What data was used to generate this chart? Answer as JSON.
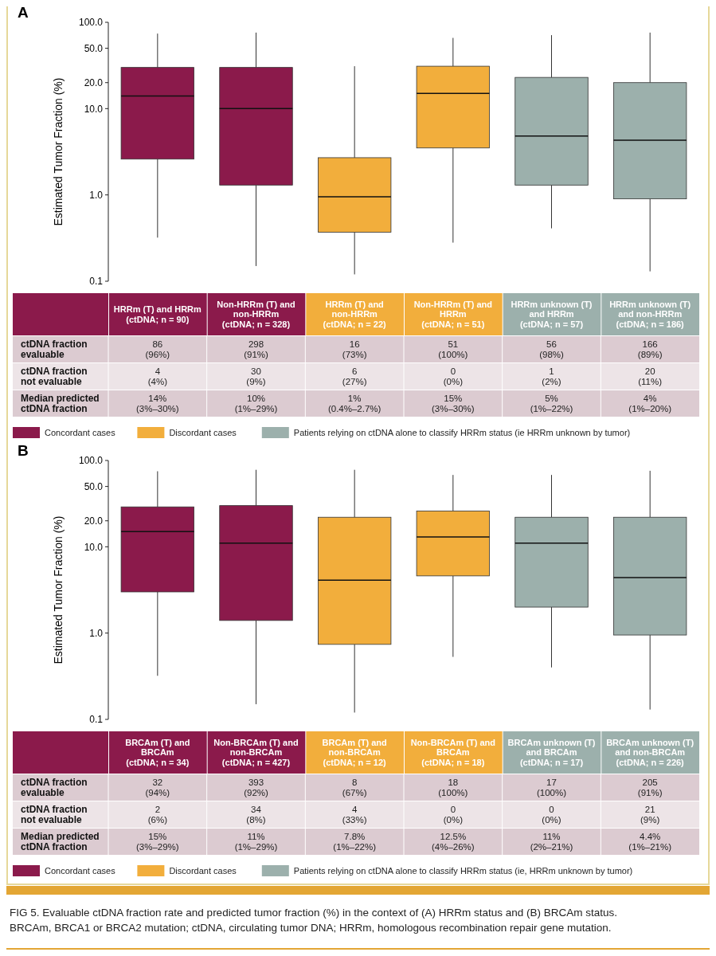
{
  "chart_data": [
    {
      "type": "box",
      "title": "A",
      "ylabel": "Estimated Tumor Fraction (%)",
      "log": "y",
      "legend": "bottom",
      "ylim": [
        0.1,
        100
      ],
      "yticks": [
        0.1,
        {
          "value": 1,
          "label": "1.0"
        },
        {
          "value": 10,
          "label": "10.0"
        },
        {
          "value": 20,
          "label": "20.0"
        },
        {
          "value": 50,
          "label": "50.0"
        },
        {
          "value": 100,
          "label": "100.0"
        }
      ],
      "categories": [
        "HRRm (T) and HRRm (ctDNA; n = 90)",
        "Non-HRRm (T) and non-HRRm (ctDNA; n = 328)",
        "HRRm (T) and non-HRRm (ctDNA; n = 22)",
        "Non-HRRm (T) and HRRm (ctDNA; n = 51)",
        "HRRm unknown (T) and HRRm (ctDNA; n = 57)",
        "HRRm unknown (T) and non-HRRm (ctDNA; n = 186)"
      ],
      "series": [
        {
          "name": "Concordant cases",
          "color": "#8b1a4b",
          "boxes": [
            {
              "low": 0.32,
              "q1": 2.6,
              "median": 14,
              "q3": 30,
              "high": 74
            },
            {
              "low": 0.15,
              "q1": 1.3,
              "median": 10,
              "q3": 30,
              "high": 76
            },
            null,
            null,
            null,
            null
          ]
        },
        {
          "name": "Discordant cases",
          "color": "#f2ae3c",
          "boxes": [
            null,
            null,
            {
              "low": 0.12,
              "q1": 0.37,
              "median": 0.95,
              "q3": 2.7,
              "high": 31
            },
            {
              "low": 0.28,
              "q1": 3.5,
              "median": 15,
              "q3": 31,
              "high": 66
            },
            null,
            null
          ]
        },
        {
          "name": "Patients relying on ctDNA alone to classify HRRm status (ie HRRm unknown by tumor)",
          "color": "#9cb0ac",
          "boxes": [
            null,
            null,
            null,
            null,
            {
              "low": 0.41,
              "q1": 1.3,
              "median": 4.8,
              "q3": 23,
              "high": 71
            },
            {
              "low": 0.13,
              "q1": 0.9,
              "median": 4.3,
              "q3": 20,
              "high": 76
            }
          ]
        }
      ],
      "annotations": [
        "ctDNA fraction evaluable",
        "ctDNA fraction not evaluable",
        "Median predicted ctDNA fraction",
        "86 (96%)",
        "298 (91%)",
        "16 (73%)",
        "51 (100%)",
        "56 (98%)",
        "166 (89%)",
        "4 (4%)",
        "30 (9%)",
        "6 (27%)",
        "0 (0%)",
        "1 (2%)",
        "20 (11%)",
        "14% (3%–30%)",
        "10% (1%–29%)",
        "1% (0.4%–2.7%)",
        "15% (3%–30%)",
        "5% (1%–22%)",
        "4% (1%–20%)"
      ]
    },
    {
      "type": "box",
      "title": "B",
      "ylabel": "Estimated Tumor Fraction (%)",
      "log": "y",
      "legend": "bottom",
      "ylim": [
        0.1,
        100
      ],
      "yticks": [
        0.1,
        {
          "value": 1,
          "label": "1.0"
        },
        {
          "value": 10,
          "label": "10.0"
        },
        {
          "value": 20,
          "label": "20.0"
        },
        {
          "value": 50,
          "label": "50.0"
        },
        {
          "value": 100,
          "label": "100.0"
        }
      ],
      "categories": [
        "BRCAm (T) and BRCAm (ctDNA; n = 34)",
        "Non-BRCAm (T) and non-BRCAm (ctDNA; n = 427)",
        "BRCAm (T) and non-BRCAm (ctDNA; n = 12)",
        "Non-BRCAm (T) and BRCAm (ctDNA; n = 18)",
        "BRCAm unknown (T) and BRCAm (ctDNA; n = 17)",
        "BRCAm unknown (T) and non-BRCAm (ctDNA; n = 226)"
      ],
      "series": [
        {
          "name": "Concordant cases",
          "color": "#8b1a4b",
          "boxes": [
            {
              "low": 0.32,
              "q1": 3.0,
              "median": 15,
              "q3": 29,
              "high": 75
            },
            {
              "low": 0.15,
              "q1": 1.4,
              "median": 11,
              "q3": 30,
              "high": 78
            },
            null,
            null,
            null,
            null
          ]
        },
        {
          "name": "Discordant cases",
          "color": "#f2ae3c",
          "boxes": [
            null,
            null,
            {
              "low": 0.12,
              "q1": 0.74,
              "median": 4.1,
              "q3": 22,
              "high": 78
            },
            {
              "low": 0.53,
              "q1": 4.6,
              "median": 13,
              "q3": 26,
              "high": 68
            },
            null,
            null
          ]
        },
        {
          "name": "Patients relying on ctDNA alone to classify HRRm status (ie, HRRm unknown by tumor)",
          "color": "#9cb0ac",
          "boxes": [
            null,
            null,
            null,
            null,
            {
              "low": 0.4,
              "q1": 2.0,
              "median": 11,
              "q3": 22,
              "high": 68
            },
            {
              "low": 0.13,
              "q1": 0.95,
              "median": 4.4,
              "q3": 22,
              "high": 76
            }
          ]
        }
      ],
      "annotations": [
        "ctDNA fraction evaluable",
        "ctDNA fraction not evaluable",
        "Median predicted ctDNA fraction",
        "32 (94%)",
        "393 (92%)",
        "8 (67%)",
        "18 (100%)",
        "17 (100%)",
        "205 (91%)",
        "2 (6%)",
        "34 (8%)",
        "4 (33%)",
        "0 (0%)",
        "0 (0%)",
        "21 (9%)",
        "15% (3%–29%)",
        "11% (1%–29%)",
        "7.8% (1%–22%)",
        "12.5% (4%–26%)",
        "11% (2%–21%)",
        "4.4% (1%–21%)",
        "FIG 5. Evaluable ctDNA fraction rate and predicted tumor fraction (%) in the context of (A) HRRm status and (B) BRCAm status. BRCAm, BRCA1 or BRCA2 mutation; ctDNA, circulating tumor DNA; HRRm, homologous recombination repair gene mutation."
      ]
    }
  ]
}
